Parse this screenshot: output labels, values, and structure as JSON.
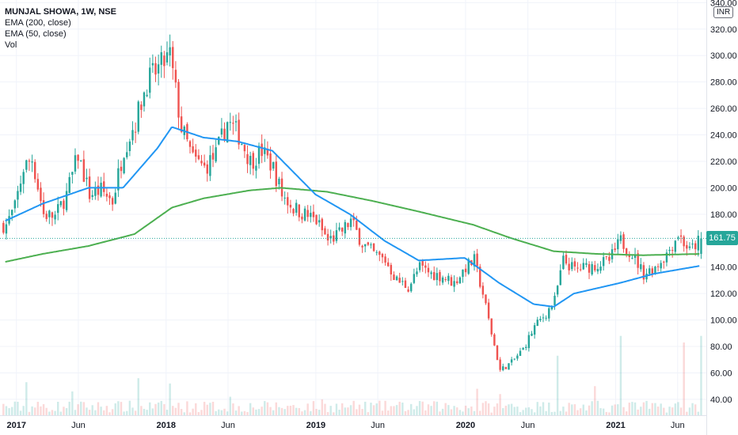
{
  "legend": {
    "title": "MUNJAL SHOWA, 1W, NSE",
    "indicators": [
      "EMA (200, close)",
      "EMA (50, close)",
      "Vol"
    ]
  },
  "currency": "INR",
  "price_label": "161.75",
  "colors": {
    "up": "#26a69a",
    "down": "#ef5350",
    "ema50": "#2196f3",
    "ema200": "#4caf50",
    "last_price_badge": "#26a69a"
  },
  "chart_data": {
    "type": "candlestick",
    "ylim": [
      28,
      342
    ],
    "y_ticks": [
      "40.00",
      "60.00",
      "80.00",
      "100.00",
      "120.00",
      "140.00",
      "160.00",
      "180.00",
      "200.00",
      "220.00",
      "240.00",
      "260.00",
      "280.00",
      "300.00",
      "320.00",
      "340.00"
    ],
    "x_ticks": [
      {
        "label": "2017",
        "bold": true
      },
      {
        "label": "Jun",
        "bold": false
      },
      {
        "label": "2018",
        "bold": true
      },
      {
        "label": "Jun",
        "bold": false
      },
      {
        "label": "2019",
        "bold": true
      },
      {
        "label": "Jun",
        "bold": false
      },
      {
        "label": "2020",
        "bold": true
      },
      {
        "label": "Jun",
        "bold": false
      },
      {
        "label": "2021",
        "bold": true
      },
      {
        "label": "Jun",
        "bold": false
      }
    ],
    "last_price": 161.75,
    "close_anchors": [
      [
        "2016-12-05",
        172
      ],
      [
        "2016-12-26",
        185
      ],
      [
        "2017-01-16",
        215
      ],
      [
        "2017-02-06",
        222
      ],
      [
        "2017-03-06",
        180
      ],
      [
        "2017-04-03",
        178
      ],
      [
        "2017-05-01",
        195
      ],
      [
        "2017-05-29",
        225
      ],
      [
        "2017-06-26",
        195
      ],
      [
        "2017-07-24",
        198
      ],
      [
        "2017-08-21",
        190
      ],
      [
        "2017-09-18",
        230
      ],
      [
        "2017-10-16",
        250
      ],
      [
        "2017-11-13",
        280
      ],
      [
        "2017-12-11",
        290
      ],
      [
        "2018-01-08",
        300
      ],
      [
        "2018-02-05",
        245
      ],
      [
        "2018-03-05",
        222
      ],
      [
        "2018-04-02",
        215
      ],
      [
        "2018-04-30",
        225
      ],
      [
        "2018-05-28",
        250
      ],
      [
        "2018-06-25",
        240
      ],
      [
        "2018-07-23",
        220
      ],
      [
        "2018-08-20",
        228
      ],
      [
        "2018-09-17",
        215
      ],
      [
        "2018-10-08",
        195
      ],
      [
        "2018-11-05",
        185
      ],
      [
        "2018-12-03",
        180
      ],
      [
        "2018-12-31",
        175
      ],
      [
        "2019-01-28",
        160
      ],
      [
        "2019-02-25",
        165
      ],
      [
        "2019-03-25",
        175
      ],
      [
        "2019-04-22",
        158
      ],
      [
        "2019-05-20",
        150
      ],
      [
        "2019-06-17",
        145
      ],
      [
        "2019-07-15",
        130
      ],
      [
        "2019-08-12",
        125
      ],
      [
        "2019-09-09",
        140
      ],
      [
        "2019-10-07",
        135
      ],
      [
        "2019-11-04",
        133
      ],
      [
        "2019-12-02",
        128
      ],
      [
        "2019-12-30",
        140
      ],
      [
        "2020-01-20",
        145
      ],
      [
        "2020-02-10",
        120
      ],
      [
        "2020-03-02",
        90
      ],
      [
        "2020-03-23",
        62
      ],
      [
        "2020-04-20",
        68
      ],
      [
        "2020-05-18",
        78
      ],
      [
        "2020-06-15",
        95
      ],
      [
        "2020-07-13",
        105
      ],
      [
        "2020-08-03",
        115
      ],
      [
        "2020-08-24",
        145
      ],
      [
        "2020-09-21",
        138
      ],
      [
        "2020-10-19",
        140
      ],
      [
        "2020-11-16",
        142
      ],
      [
        "2020-12-14",
        145
      ],
      [
        "2021-01-11",
        160
      ],
      [
        "2021-02-08",
        150
      ],
      [
        "2021-03-08",
        135
      ],
      [
        "2021-04-05",
        140
      ],
      [
        "2021-05-03",
        150
      ],
      [
        "2021-05-31",
        165
      ],
      [
        "2021-06-28",
        152
      ],
      [
        "2021-07-26",
        161.75
      ]
    ],
    "ema50_anchors": [
      [
        "2016-12-05",
        175
      ],
      [
        "2017-03-06",
        188
      ],
      [
        "2017-06-26",
        200
      ],
      [
        "2017-09-18",
        200
      ],
      [
        "2017-12-11",
        230
      ],
      [
        "2018-01-15",
        246
      ],
      [
        "2018-04-02",
        238
      ],
      [
        "2018-06-25",
        235
      ],
      [
        "2018-09-17",
        228
      ],
      [
        "2018-12-31",
        195
      ],
      [
        "2019-03-25",
        180
      ],
      [
        "2019-06-17",
        160
      ],
      [
        "2019-09-09",
        145
      ],
      [
        "2019-12-30",
        147
      ],
      [
        "2020-03-23",
        128
      ],
      [
        "2020-06-15",
        112
      ],
      [
        "2020-08-03",
        110
      ],
      [
        "2020-09-21",
        120
      ],
      [
        "2021-01-11",
        128
      ],
      [
        "2021-04-05",
        135
      ],
      [
        "2021-07-26",
        141
      ]
    ],
    "ema200_anchors": [
      [
        "2016-12-05",
        144
      ],
      [
        "2017-03-06",
        150
      ],
      [
        "2017-06-26",
        156
      ],
      [
        "2017-10-16",
        165
      ],
      [
        "2018-01-15",
        185
      ],
      [
        "2018-04-02",
        192
      ],
      [
        "2018-07-23",
        198
      ],
      [
        "2018-10-08",
        200
      ],
      [
        "2019-01-28",
        197
      ],
      [
        "2019-05-20",
        190
      ],
      [
        "2019-09-09",
        182
      ],
      [
        "2020-01-20",
        172
      ],
      [
        "2020-04-20",
        162
      ],
      [
        "2020-08-03",
        152
      ],
      [
        "2020-11-16",
        150
      ],
      [
        "2021-03-08",
        149
      ],
      [
        "2021-07-26",
        150
      ]
    ],
    "volume_peaks": [
      [
        "2017-01-23",
        25
      ],
      [
        "2017-05-15",
        18
      ],
      [
        "2017-10-23",
        28
      ],
      [
        "2018-01-08",
        24
      ],
      [
        "2018-06-04",
        14
      ],
      [
        "2019-01-14",
        12
      ],
      [
        "2020-01-27",
        20
      ],
      [
        "2020-03-23",
        16
      ],
      [
        "2020-08-10",
        45
      ],
      [
        "2020-11-09",
        22
      ],
      [
        "2021-01-11",
        60
      ],
      [
        "2021-06-14",
        55
      ],
      [
        "2021-07-26",
        60
      ]
    ]
  }
}
